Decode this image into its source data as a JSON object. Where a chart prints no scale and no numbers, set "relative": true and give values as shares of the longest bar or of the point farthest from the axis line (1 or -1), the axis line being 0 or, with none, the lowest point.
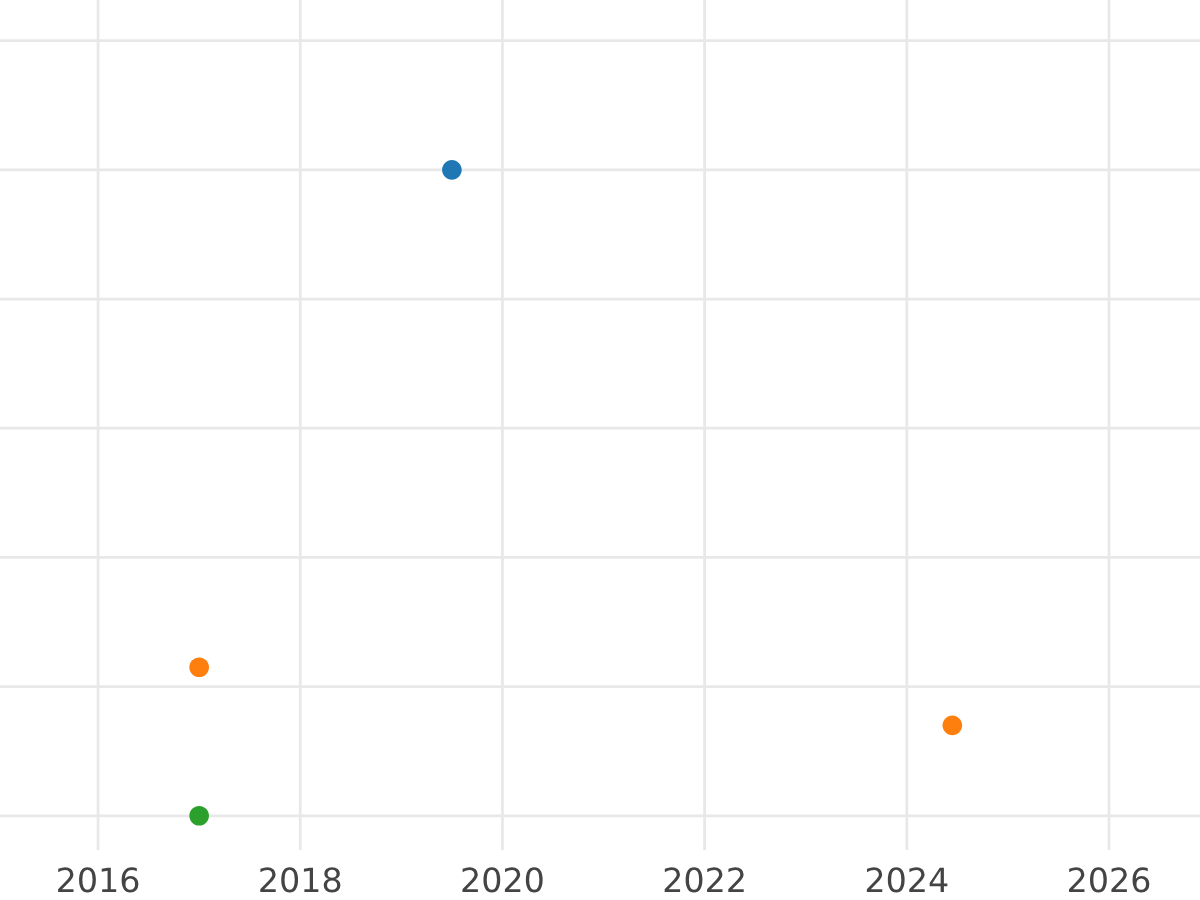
{
  "chart_data": {
    "type": "scatter",
    "relative": true,
    "grid": true,
    "tick_labels": "x",
    "marker": "circle",
    "xlim": [
      2015.03,
      2026.9
    ],
    "xticks": [
      2016,
      2018,
      2020,
      2022,
      2024,
      2026
    ],
    "series": [
      {
        "color": "#1f77b4",
        "x": [
          2019.5
        ],
        "values": [
          1
        ]
      },
      {
        "color": "#ff7f0e",
        "x": [
          2017.0,
          2024.45
        ],
        "values": [
          0.23,
          0.14
        ]
      },
      {
        "color": "#2ca02c",
        "x": [
          2017.0
        ],
        "values": [
          0
        ]
      }
    ]
  }
}
